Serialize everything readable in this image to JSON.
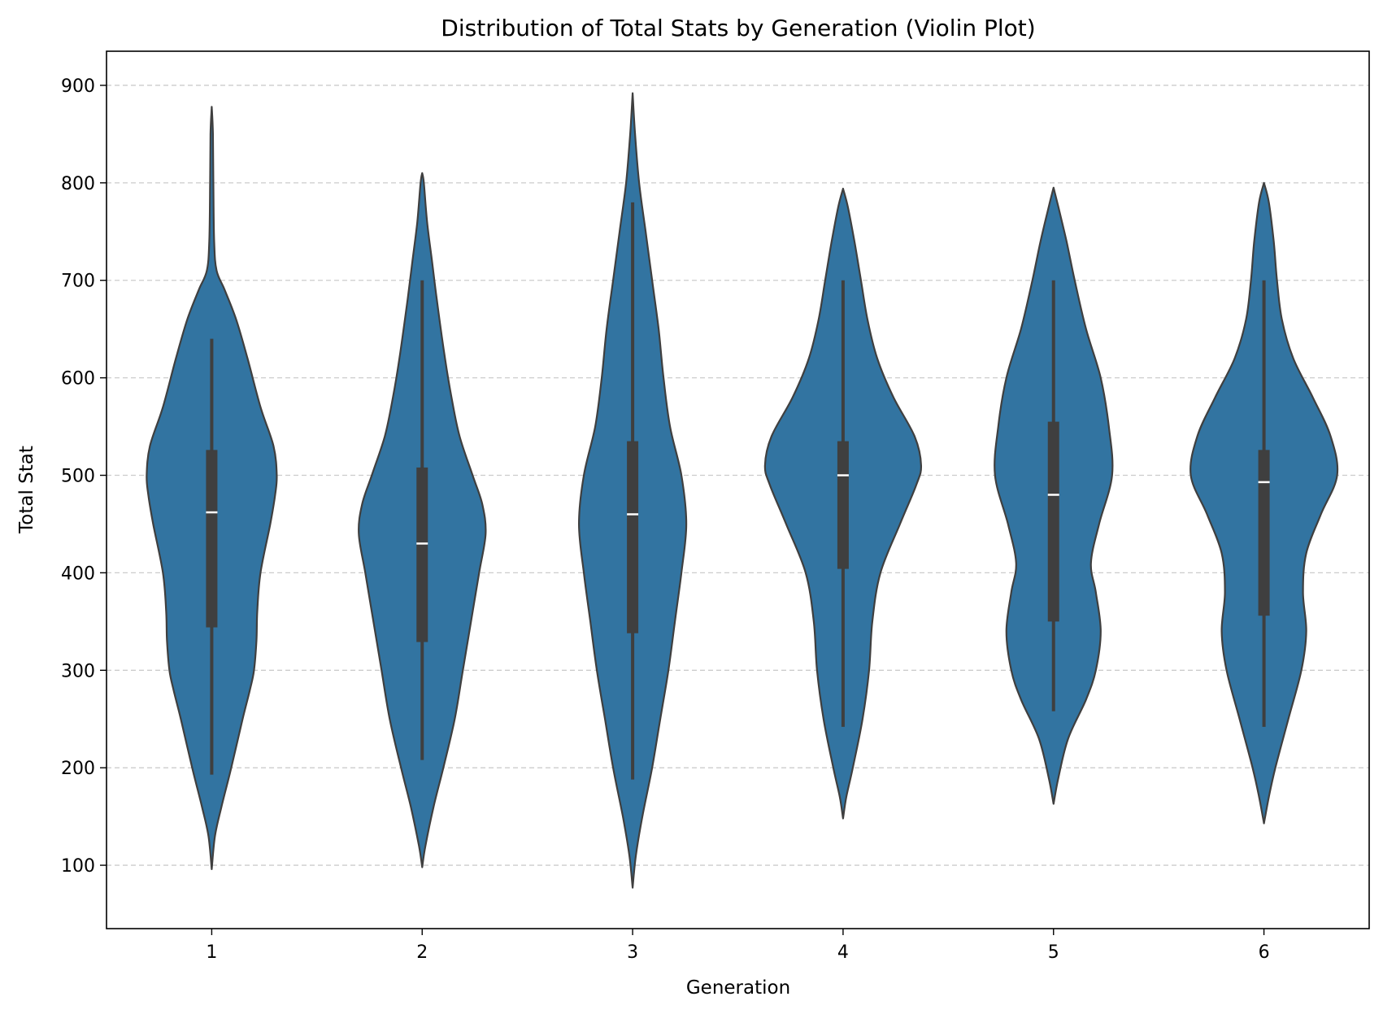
{
  "chart_data": {
    "type": "violin",
    "title": "Distribution of Total Stats by Generation (Violin Plot)",
    "xlabel": "Generation",
    "ylabel": "Total Stat",
    "categories": [
      "1",
      "2",
      "3",
      "4",
      "5",
      "6"
    ],
    "ylim": [
      35,
      935
    ],
    "yticks": [
      100,
      200,
      300,
      400,
      500,
      600,
      700,
      800,
      900
    ],
    "grid": {
      "axis": "y",
      "style": "dashed"
    },
    "colors": {
      "violin_fill": "#3274a1",
      "violin_edge": "#3f3f3f",
      "box": "#3f3f3f",
      "median": "#ffffff",
      "grid": "#cccccc"
    },
    "violins": [
      {
        "category": "1",
        "min": 96,
        "max": 878,
        "box": {
          "q1": 344,
          "median": 462,
          "q3": 526
        },
        "whisker": [
          193,
          640
        ],
        "profile": [
          [
            96,
            0
          ],
          [
            130,
            4
          ],
          [
            160,
            12
          ],
          [
            200,
            24
          ],
          [
            250,
            38
          ],
          [
            280,
            47
          ],
          [
            300,
            52
          ],
          [
            330,
            55
          ],
          [
            360,
            56
          ],
          [
            400,
            60
          ],
          [
            450,
            72
          ],
          [
            480,
            78
          ],
          [
            500,
            80
          ],
          [
            530,
            76
          ],
          [
            570,
            60
          ],
          [
            620,
            44
          ],
          [
            660,
            30
          ],
          [
            690,
            16
          ],
          [
            710,
            6
          ],
          [
            740,
            3
          ],
          [
            800,
            2
          ],
          [
            850,
            1.5
          ],
          [
            878,
            0
          ]
        ]
      },
      {
        "category": "2",
        "min": 98,
        "max": 810,
        "box": {
          "q1": 329,
          "median": 430,
          "q3": 508
        },
        "whisker": [
          208,
          700
        ],
        "profile": [
          [
            98,
            0
          ],
          [
            120,
            4
          ],
          [
            160,
            14
          ],
          [
            200,
            26
          ],
          [
            250,
            40
          ],
          [
            300,
            50
          ],
          [
            350,
            60
          ],
          [
            400,
            70
          ],
          [
            440,
            78
          ],
          [
            470,
            74
          ],
          [
            500,
            62
          ],
          [
            540,
            46
          ],
          [
            580,
            36
          ],
          [
            620,
            28
          ],
          [
            680,
            18
          ],
          [
            720,
            12
          ],
          [
            760,
            6
          ],
          [
            800,
            2
          ],
          [
            810,
            0
          ]
        ]
      },
      {
        "category": "3",
        "min": 77,
        "max": 892,
        "box": {
          "q1": 338,
          "median": 460,
          "q3": 535
        },
        "whisker": [
          188,
          780
        ],
        "profile": [
          [
            77,
            0
          ],
          [
            110,
            4
          ],
          [
            150,
            12
          ],
          [
            200,
            24
          ],
          [
            250,
            34
          ],
          [
            300,
            44
          ],
          [
            350,
            52
          ],
          [
            400,
            60
          ],
          [
            450,
            66
          ],
          [
            500,
            60
          ],
          [
            550,
            46
          ],
          [
            600,
            38
          ],
          [
            650,
            32
          ],
          [
            700,
            24
          ],
          [
            750,
            16
          ],
          [
            800,
            8
          ],
          [
            850,
            3
          ],
          [
            892,
            0
          ]
        ]
      },
      {
        "category": "4",
        "min": 148,
        "max": 794,
        "box": {
          "q1": 404,
          "median": 500,
          "q3": 535
        },
        "whisker": [
          242,
          700
        ],
        "profile": [
          [
            148,
            0
          ],
          [
            170,
            4
          ],
          [
            200,
            12
          ],
          [
            250,
            24
          ],
          [
            300,
            32
          ],
          [
            350,
            36
          ],
          [
            400,
            46
          ],
          [
            450,
            70
          ],
          [
            490,
            90
          ],
          [
            510,
            96
          ],
          [
            540,
            88
          ],
          [
            580,
            62
          ],
          [
            620,
            42
          ],
          [
            660,
            30
          ],
          [
            700,
            22
          ],
          [
            740,
            14
          ],
          [
            775,
            6
          ],
          [
            794,
            0
          ]
        ]
      },
      {
        "category": "5",
        "min": 163,
        "max": 795,
        "box": {
          "q1": 350,
          "median": 480,
          "q3": 555
        },
        "whisker": [
          258,
          700
        ],
        "profile": [
          [
            163,
            0
          ],
          [
            190,
            6
          ],
          [
            230,
            18
          ],
          [
            270,
            40
          ],
          [
            300,
            52
          ],
          [
            340,
            58
          ],
          [
            380,
            52
          ],
          [
            410,
            46
          ],
          [
            450,
            56
          ],
          [
            500,
            72
          ],
          [
            550,
            68
          ],
          [
            600,
            58
          ],
          [
            650,
            40
          ],
          [
            700,
            26
          ],
          [
            740,
            16
          ],
          [
            775,
            6
          ],
          [
            795,
            0
          ]
        ]
      },
      {
        "category": "6",
        "min": 143,
        "max": 800,
        "box": {
          "q1": 356,
          "median": 493,
          "q3": 526
        },
        "whisker": [
          242,
          700
        ],
        "profile": [
          [
            143,
            0
          ],
          [
            170,
            6
          ],
          [
            200,
            14
          ],
          [
            250,
            30
          ],
          [
            300,
            46
          ],
          [
            340,
            52
          ],
          [
            380,
            48
          ],
          [
            420,
            52
          ],
          [
            460,
            70
          ],
          [
            500,
            90
          ],
          [
            540,
            82
          ],
          [
            580,
            60
          ],
          [
            620,
            36
          ],
          [
            660,
            22
          ],
          [
            700,
            16
          ],
          [
            740,
            12
          ],
          [
            780,
            6
          ],
          [
            800,
            0
          ]
        ]
      }
    ]
  }
}
